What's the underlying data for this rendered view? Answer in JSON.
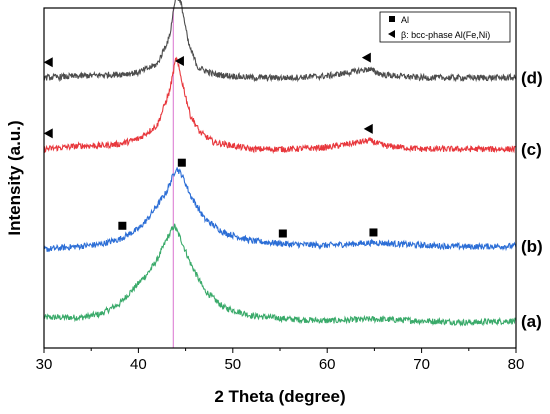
{
  "chart_data": {
    "type": "line",
    "xlabel": "2 Theta (degree)",
    "ylabel": "Intensity (a.u.)",
    "xlim": [
      30,
      80
    ],
    "xticks": [
      30,
      40,
      50,
      60,
      70,
      80
    ],
    "reference_line_x": 43.7,
    "reference_line_color": "#e08ad8",
    "legend": {
      "placement": "top-right",
      "entries": [
        {
          "marker": "square",
          "label": "Al"
        },
        {
          "marker": "triangle-left",
          "label": "β: bcc-phase Al(Fe,Ni)"
        }
      ]
    },
    "series": [
      {
        "curve_label": "(a)",
        "color": "#3aaa6a",
        "baseline": 0.06,
        "points": [
          [
            30,
            0.03
          ],
          [
            34,
            0.03
          ],
          [
            36,
            0.04
          ],
          [
            38,
            0.07
          ],
          [
            40,
            0.13
          ],
          [
            41,
            0.16
          ],
          [
            42,
            0.2
          ],
          [
            43,
            0.26
          ],
          [
            43.8,
            0.3
          ],
          [
            44.5,
            0.26
          ],
          [
            45.5,
            0.19
          ],
          [
            47,
            0.11
          ],
          [
            49,
            0.06
          ],
          [
            52,
            0.035
          ],
          [
            56,
            0.025
          ],
          [
            60,
            0.02
          ],
          [
            65,
            0.025
          ],
          [
            70,
            0.02
          ],
          [
            75,
            0.015
          ],
          [
            80,
            0.02
          ]
        ]
      },
      {
        "curve_label": "(b)",
        "color": "#2c6ed6",
        "baseline": 0.29,
        "points": [
          [
            30,
            0.0
          ],
          [
            34,
            0.01
          ],
          [
            36,
            0.015
          ],
          [
            38,
            0.03
          ],
          [
            40,
            0.06
          ],
          [
            41,
            0.09
          ],
          [
            42,
            0.13
          ],
          [
            43,
            0.17
          ],
          [
            44.0,
            0.24
          ],
          [
            44.6,
            0.22
          ],
          [
            45.5,
            0.16
          ],
          [
            47,
            0.09
          ],
          [
            49,
            0.05
          ],
          [
            52,
            0.025
          ],
          [
            56,
            0.015
          ],
          [
            60,
            0.012
          ],
          [
            65,
            0.02
          ],
          [
            70,
            0.012
          ],
          [
            75,
            0.008
          ],
          [
            80,
            0.01
          ]
        ]
      },
      {
        "curve_label": "(c)",
        "color": "#e8383d",
        "baseline": 0.585,
        "points": [
          [
            30,
            0.0
          ],
          [
            34,
            0.01
          ],
          [
            36,
            0.01
          ],
          [
            38,
            0.015
          ],
          [
            40,
            0.03
          ],
          [
            42,
            0.07
          ],
          [
            43.3,
            0.17
          ],
          [
            44.0,
            0.27
          ],
          [
            44.7,
            0.19
          ],
          [
            45.5,
            0.1
          ],
          [
            46.5,
            0.05
          ],
          [
            48,
            0.02
          ],
          [
            52,
            0.0
          ],
          [
            56,
            0.0
          ],
          [
            60,
            0.005
          ],
          [
            64.5,
            0.025
          ],
          [
            66,
            0.01
          ],
          [
            70,
            0.0
          ],
          [
            75,
            0.0
          ],
          [
            80,
            0.0
          ]
        ]
      },
      {
        "curve_label": "(d)",
        "color": "#4d4d4d",
        "baseline": 0.795,
        "points": [
          [
            30,
            0.0
          ],
          [
            34,
            0.005
          ],
          [
            38,
            0.01
          ],
          [
            40,
            0.015
          ],
          [
            42,
            0.04
          ],
          [
            43.3,
            0.12
          ],
          [
            44.0,
            0.25
          ],
          [
            44.6,
            0.21
          ],
          [
            45.3,
            0.1
          ],
          [
            46.3,
            0.03
          ],
          [
            48,
            0.01
          ],
          [
            52,
            0.0
          ],
          [
            56,
            0.0
          ],
          [
            60,
            0.005
          ],
          [
            64.4,
            0.025
          ],
          [
            66,
            0.008
          ],
          [
            70,
            0.0
          ],
          [
            75,
            0.0
          ],
          [
            80,
            0.0
          ]
        ]
      }
    ],
    "markers": [
      {
        "symbol": "square",
        "x": 38.3,
        "series": 1,
        "dy": 0.035
      },
      {
        "symbol": "square",
        "x": 44.6,
        "series": 1,
        "dy": 0.035
      },
      {
        "symbol": "square",
        "x": 55.3,
        "series": 1,
        "dy": 0.03
      },
      {
        "symbol": "square",
        "x": 64.9,
        "series": 1,
        "dy": 0.03
      },
      {
        "symbol": "triangle-left",
        "x": 30.5,
        "series": 2,
        "dy": 0.045
      },
      {
        "symbol": "triangle-left",
        "x": 44.4,
        "series": 2,
        "dy": 0.035
      },
      {
        "symbol": "triangle-left",
        "x": 64.4,
        "series": 2,
        "dy": 0.035
      },
      {
        "symbol": "triangle-left",
        "x": 30.5,
        "series": 3,
        "dy": 0.045
      },
      {
        "symbol": "triangle-left",
        "x": 44.4,
        "series": 3,
        "dy": 0.035
      },
      {
        "symbol": "triangle-left",
        "x": 64.2,
        "series": 3,
        "dy": 0.035
      }
    ]
  }
}
